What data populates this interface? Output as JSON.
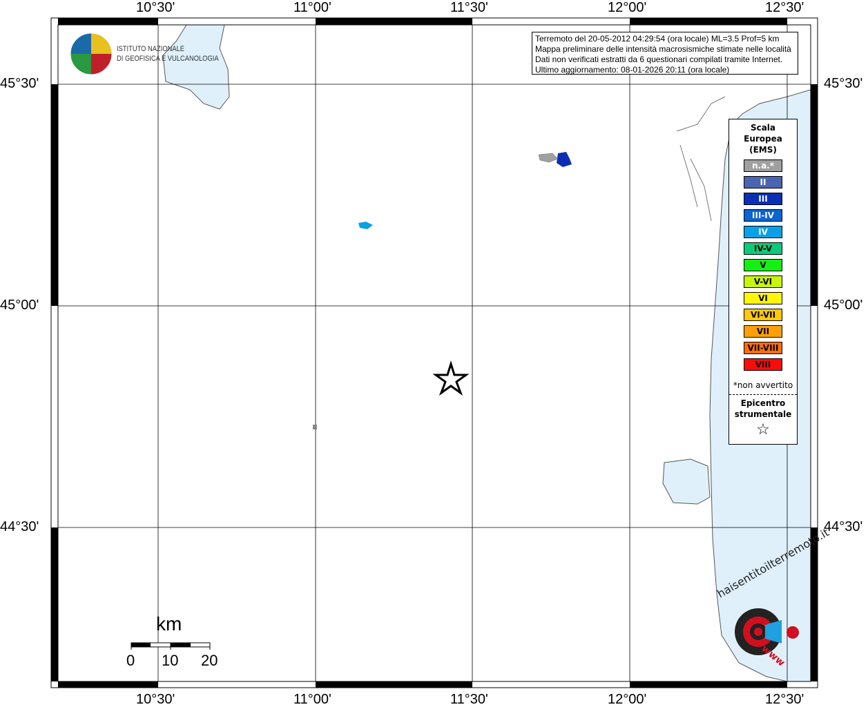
{
  "info": {
    "lines": [
      "Terremoto del 20-05-2012 04:29:54 (ora locale) ML=3.5 Prof=5 km",
      "Mappa preliminare delle intensità macrosismiche stimate nelle località",
      "Dati non verificati estratti da 6 questionari compilati tramite Internet.",
      "Ultimo aggiornamento: 08-01-2026 20:11 (ora locale)"
    ]
  },
  "axes": {
    "lon_labels": [
      "10°30'",
      "11°00'",
      "11°30'",
      "12°00'",
      "12°30'"
    ],
    "lat_labels": [
      "45°30'",
      "45°00'",
      "44°30'"
    ]
  },
  "logo_ingv": {
    "line1": "ISTITUTO NAZIONALE",
    "line2": "DI GEOFISICA E VULCANOLOGIA"
  },
  "logo_hsit": {
    "text": "haisentitoilterremoto.it",
    "www": "www"
  },
  "legend": {
    "title": [
      "Scala",
      "Europea",
      "(EMS)"
    ],
    "classes": [
      {
        "label": "n.a.*",
        "color": "#a0a0a0",
        "text": "#ffffff"
      },
      {
        "label": "II",
        "color": "#4a64b0",
        "text": "#ffffff"
      },
      {
        "label": "III",
        "color": "#0a2fb4",
        "text": "#ffffff"
      },
      {
        "label": "III-IV",
        "color": "#0a64d2",
        "text": "#ffffff"
      },
      {
        "label": "IV",
        "color": "#0aa0e6",
        "text": "#ffffff"
      },
      {
        "label": "IV-V",
        "color": "#0acc78",
        "text": "#000000"
      },
      {
        "label": "V",
        "color": "#14f014",
        "text": "#000000"
      },
      {
        "label": "V-VI",
        "color": "#c8f50a",
        "text": "#000000"
      },
      {
        "label": "VI",
        "color": "#fff50a",
        "text": "#000000"
      },
      {
        "label": "VI-VII",
        "color": "#ffc80a",
        "text": "#000000"
      },
      {
        "label": "VII",
        "color": "#ffa00a",
        "text": "#000000"
      },
      {
        "label": "VII-VIII",
        "color": "#ff6e0a",
        "text": "#000000"
      },
      {
        "label": "VIII",
        "color": "#ff0a0a",
        "text": "#000000"
      }
    ],
    "note": "*non avvertito",
    "epicenter_label": [
      "Epicentro",
      "strumentale"
    ]
  },
  "scale_bar": {
    "unit": "km",
    "ticks": [
      "0",
      "10",
      "20"
    ]
  },
  "colors": {
    "sea": "#dff0fb",
    "coast": "#555555"
  }
}
